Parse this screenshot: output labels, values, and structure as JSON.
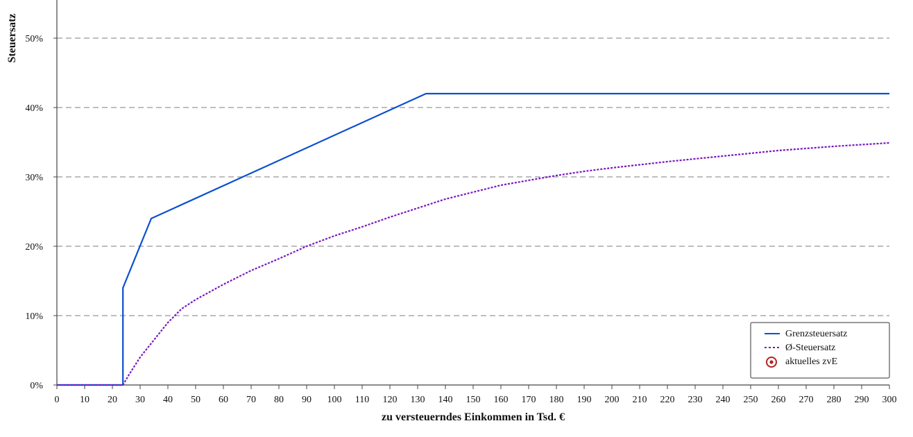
{
  "chart_data": {
    "type": "line",
    "xlabel": "zu versteuerndes Einkommen in Tsd. €",
    "ylabel": "Steuersatz",
    "xlim": [
      0,
      300
    ],
    "ylim": [
      0,
      0.55
    ],
    "x_ticks": [
      "0",
      "10",
      "20",
      "30",
      "40",
      "50",
      "60",
      "70",
      "80",
      "90",
      "100",
      "110",
      "120",
      "130",
      "140",
      "150",
      "160",
      "170",
      "180",
      "190",
      "200",
      "210",
      "220",
      "230",
      "240",
      "250",
      "260",
      "270",
      "280",
      "290",
      "300"
    ],
    "y_ticks": [
      {
        "value": 0,
        "label": "0%"
      },
      {
        "value": 0.1,
        "label": "10%"
      },
      {
        "value": 0.2,
        "label": "20%"
      },
      {
        "value": 0.3,
        "label": "30%"
      },
      {
        "value": 0.4,
        "label": "40%"
      },
      {
        "value": 0.5,
        "label": "50%"
      }
    ],
    "grid": "horizontal dashed",
    "legend_position": "bottom-right",
    "series": [
      {
        "name": "Grenzsteuersatz",
        "color": "#0a4fd1",
        "style": "solid",
        "points": [
          [
            0,
            0
          ],
          [
            23.8,
            0
          ],
          [
            23.8,
            0.14
          ],
          [
            34,
            0.24
          ],
          [
            133,
            0.42
          ],
          [
            300,
            0.42
          ]
        ]
      },
      {
        "name": "Ø-Steuersatz",
        "color": "#7a18c0",
        "style": "dotted",
        "points": [
          [
            0,
            0
          ],
          [
            23.8,
            0
          ],
          [
            26,
            0.015
          ],
          [
            30,
            0.04
          ],
          [
            35,
            0.065
          ],
          [
            40,
            0.09
          ],
          [
            45,
            0.11
          ],
          [
            50,
            0.123
          ],
          [
            60,
            0.145
          ],
          [
            70,
            0.165
          ],
          [
            80,
            0.182
          ],
          [
            90,
            0.2
          ],
          [
            100,
            0.215
          ],
          [
            110,
            0.228
          ],
          [
            120,
            0.242
          ],
          [
            130,
            0.255
          ],
          [
            140,
            0.268
          ],
          [
            150,
            0.278
          ],
          [
            160,
            0.288
          ],
          [
            170,
            0.295
          ],
          [
            180,
            0.302
          ],
          [
            190,
            0.308
          ],
          [
            200,
            0.313
          ],
          [
            220,
            0.322
          ],
          [
            240,
            0.33
          ],
          [
            260,
            0.338
          ],
          [
            280,
            0.344
          ],
          [
            300,
            0.349
          ]
        ]
      }
    ],
    "legend": [
      {
        "label": "Grenzsteuersatz",
        "marker": "solid-line",
        "color": "#0a4fd1"
      },
      {
        "label": "Ø-Steuersatz",
        "marker": "dotted-line",
        "color": "#7a18c0"
      },
      {
        "label": "aktuelles zvE",
        "marker": "target-circle",
        "color": "#b22222"
      }
    ]
  }
}
